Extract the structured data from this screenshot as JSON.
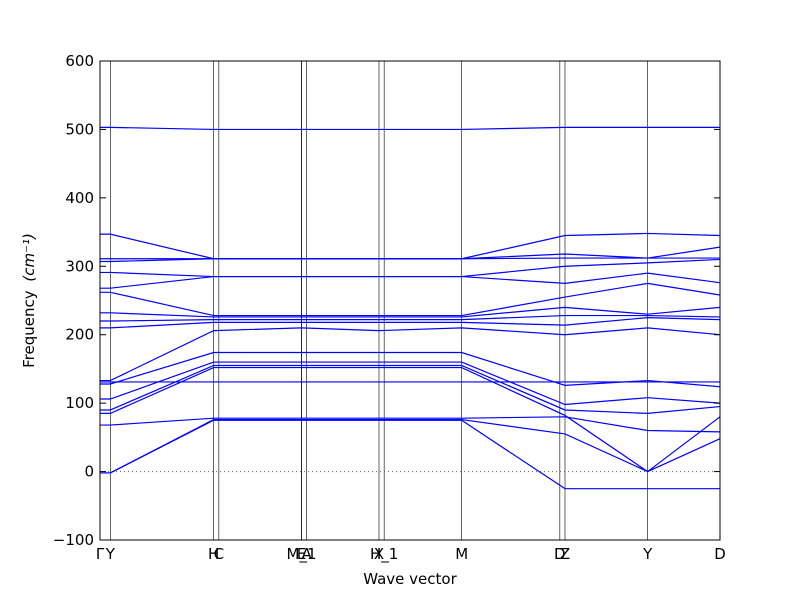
{
  "chart_data": {
    "type": "line",
    "title": "",
    "xlabel": "Wave vector",
    "ylabel": "Frequency",
    "ylabel_unit": "(cm⁻¹)",
    "ylim": [
      -100,
      600
    ],
    "yticks": [
      -100,
      0,
      100,
      200,
      300,
      400,
      500,
      600
    ],
    "line_color": "#0000ff",
    "zero_line": {
      "value": 0,
      "style": "dotted"
    },
    "kpoints": [
      {
        "label": "Γ",
        "x": 0.0
      },
      {
        "label": "Y",
        "x": 0.1
      },
      {
        "label": "H",
        "x": 1.1
      },
      {
        "label": "C",
        "x": 1.15
      },
      {
        "label": "E",
        "x": 1.95
      },
      {
        "label": "M_1",
        "x": 1.95
      },
      {
        "label": "A",
        "x": 2.0
      },
      {
        "label": "X",
        "x": 2.7
      },
      {
        "label": "H_1",
        "x": 2.75
      },
      {
        "label": "M",
        "x": 3.5
      },
      {
        "label": "D",
        "x": 4.45
      },
      {
        "label": "Z",
        "x": 4.5
      },
      {
        "label": "Y",
        "x": 5.3
      },
      {
        "label": "D",
        "x": 6.0
      }
    ],
    "x": [
      0.0,
      0.1,
      1.1,
      1.95,
      2.7,
      3.5,
      4.5,
      5.3,
      6.0
    ],
    "series": [
      {
        "values": [
          -2,
          -2,
          75,
          75,
          75,
          75,
          -25,
          -25,
          -25
        ]
      },
      {
        "values": [
          -2,
          -2,
          76,
          76,
          76,
          76,
          55,
          0,
          48
        ]
      },
      {
        "values": [
          68,
          68,
          78,
          78,
          78,
          78,
          80,
          60,
          58
        ]
      },
      {
        "values": [
          85,
          85,
          152,
          152,
          152,
          152,
          82,
          0,
          80
        ]
      },
      {
        "values": [
          90,
          90,
          155,
          155,
          155,
          155,
          90,
          85,
          95
        ]
      },
      {
        "values": [
          106,
          106,
          160,
          160,
          160,
          160,
          98,
          108,
          100
        ]
      },
      {
        "values": [
          128,
          128,
          174,
          174,
          174,
          174,
          126,
          133,
          124
        ]
      },
      {
        "values": [
          131,
          131,
          131,
          131,
          131,
          131,
          131,
          131,
          131
        ]
      },
      {
        "values": [
          133,
          133,
          206,
          210,
          206,
          210,
          200,
          210,
          200
        ]
      },
      {
        "values": [
          210,
          210,
          218,
          218,
          218,
          218,
          214,
          225,
          222
        ]
      },
      {
        "values": [
          220,
          220,
          222,
          222,
          222,
          222,
          228,
          228,
          226
        ]
      },
      {
        "values": [
          232,
          232,
          226,
          226,
          226,
          226,
          240,
          230,
          240
        ]
      },
      {
        "values": [
          262,
          262,
          228,
          228,
          228,
          228,
          255,
          275,
          258
        ]
      },
      {
        "values": [
          268,
          268,
          285,
          285,
          285,
          285,
          275,
          290,
          276
        ]
      },
      {
        "values": [
          291,
          291,
          285,
          285,
          285,
          285,
          300,
          305,
          310
        ]
      },
      {
        "values": [
          307,
          307,
          311,
          311,
          311,
          311,
          312,
          312,
          312
        ]
      },
      {
        "values": [
          311,
          311,
          311,
          311,
          311,
          311,
          318,
          312,
          328
        ]
      },
      {
        "values": [
          347,
          347,
          311,
          311,
          311,
          311,
          345,
          348,
          345
        ]
      },
      {
        "values": [
          503,
          503,
          500,
          500,
          500,
          500,
          503,
          503,
          503
        ]
      }
    ]
  }
}
